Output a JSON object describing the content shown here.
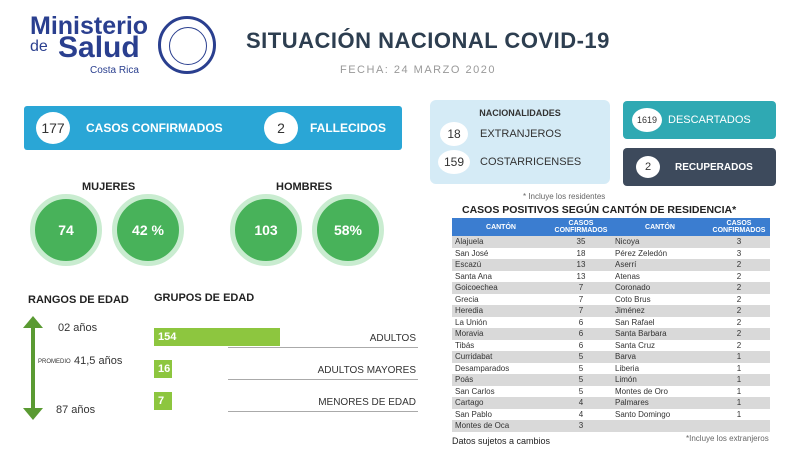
{
  "header": {
    "logo": {
      "line1": "Ministerio",
      "line2": "de",
      "line3": "Salud",
      "line4": "Costa Rica"
    },
    "title": "SITUACIÓN NACIONAL COVID-19",
    "date": "FECHA: 24  MARZO 2020"
  },
  "summary": {
    "confirmed": {
      "value": "177",
      "label": "CASOS CONFIRMADOS"
    },
    "deaths": {
      "value": "2",
      "label": "FALLECIDOS"
    }
  },
  "nationalities": {
    "title": "NACIONALIDADES",
    "items": [
      {
        "value": "18",
        "label": "EXTRANJEROS"
      },
      {
        "value": "159",
        "label": "COSTARRICENSES"
      }
    ],
    "note": "* Incluye los residentes"
  },
  "discarded": {
    "value": "1619",
    "label": "DESCARTADOS"
  },
  "recovered": {
    "value": "2",
    "label": "RECUPERADOS"
  },
  "women": {
    "title": "MUJERES",
    "count": "74",
    "percent": "42 %"
  },
  "men": {
    "title": "HOMBRES",
    "count": "103",
    "percent": "58%"
  },
  "age_ranges": {
    "title": "RANGOS DE EDAD",
    "min": "02 años",
    "average_label": "PROMEDIO",
    "average": "41,5 años",
    "max": "87 años"
  },
  "age_groups": {
    "title": "GRUPOS DE EDAD",
    "groups": [
      {
        "value": 154,
        "label": "ADULTOS"
      },
      {
        "value": 16,
        "label": "ADULTOS MAYORES"
      },
      {
        "value": 7,
        "label": "MENORES DE EDAD"
      }
    ]
  },
  "table": {
    "title": "CASOS POSITIVOS SEGÚN CANTÓN DE RESIDENCIA*",
    "headers": [
      "CANTÓN",
      "CASOS CONFIRMADOS",
      "CANTÓN",
      "CASOS CONFIRMADOS"
    ],
    "left": [
      [
        "Alajuela",
        35
      ],
      [
        "San José",
        18
      ],
      [
        "Escazú",
        13
      ],
      [
        "Santa Ana",
        13
      ],
      [
        "Goicoechea",
        7
      ],
      [
        "Grecia",
        7
      ],
      [
        "Heredia",
        7
      ],
      [
        "La Unión",
        6
      ],
      [
        "Moravia",
        6
      ],
      [
        "Tibás",
        6
      ],
      [
        "Curridabat",
        5
      ],
      [
        "Desamparados",
        5
      ],
      [
        "Poás",
        5
      ],
      [
        "San Carlos",
        5
      ],
      [
        "Cartago",
        4
      ],
      [
        "San Pablo",
        4
      ],
      [
        "Montes de Oca",
        3
      ]
    ],
    "right": [
      [
        "Nicoya",
        3
      ],
      [
        "Pérez Zeledón",
        3
      ],
      [
        "Aserrí",
        2
      ],
      [
        "Atenas",
        2
      ],
      [
        "Coronado",
        2
      ],
      [
        "Coto Brus",
        2
      ],
      [
        "Jiménez",
        2
      ],
      [
        "San Rafael",
        2
      ],
      [
        "Santa Barbara",
        2
      ],
      [
        "Santa Cruz",
        2
      ],
      [
        "Barva",
        1
      ],
      [
        "Liberia",
        1
      ],
      [
        "Limón",
        1
      ],
      [
        "Montes de Oro",
        1
      ],
      [
        "Palmares",
        1
      ],
      [
        "Santo Domingo",
        1
      ]
    ]
  },
  "footnotes": {
    "left": "Datos sujetos a cambios",
    "right": "*Incluye los extranjeros"
  }
}
